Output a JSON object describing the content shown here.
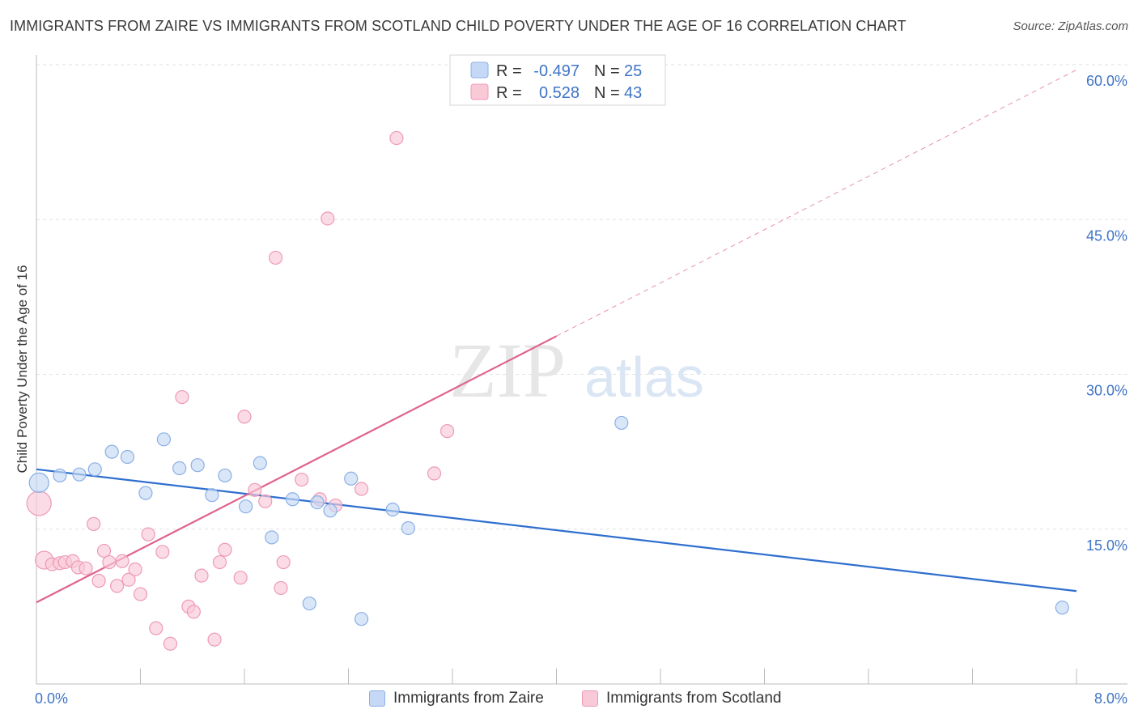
{
  "title": "IMMIGRANTS FROM ZAIRE VS IMMIGRANTS FROM SCOTLAND CHILD POVERTY UNDER THE AGE OF 16 CORRELATION CHART",
  "source": "Source: ZipAtlas.com",
  "watermark": {
    "zip": "ZIP",
    "atlas": "atlas"
  },
  "legend": {
    "rows": [
      {
        "r_label": "R =",
        "r_value": "-0.497",
        "n_label": "N =",
        "n_value": "25"
      },
      {
        "r_label": "R =",
        "r_value": "0.528",
        "n_label": "N =",
        "n_value": "43"
      }
    ]
  },
  "bottom_legend": {
    "zaire": "Immigrants from Zaire",
    "scotland": "Immigrants from Scotland"
  },
  "colors": {
    "zaire_fill": "#c5d8f5",
    "zaire_stroke": "#8ab0e6",
    "zaire_line": "#2f6fce",
    "scotland_fill": "#f9c9d8",
    "scotland_stroke": "#ee9ab5",
    "scotland_line": "#e0638f",
    "tick_text": "#3f74c7",
    "grid": "#e2e2e2"
  },
  "chart_data": {
    "type": "scatter",
    "title": "IMMIGRANTS FROM ZAIRE VS IMMIGRANTS FROM SCOTLAND CHILD POVERTY UNDER THE AGE OF 16 CORRELATION CHART",
    "xlabel": "",
    "ylabel": "Child Poverty Under the Age of 16",
    "xlim": [
      0,
      8
    ],
    "ylim": [
      0,
      60
    ],
    "x_tick_labels": [
      "0.0%",
      "8.0%"
    ],
    "y_ticks": [
      15,
      30,
      45,
      60
    ],
    "y_tick_labels": [
      "15.0%",
      "30.0%",
      "45.0%",
      "60.0%"
    ],
    "grid": true,
    "legend_position": "top-center",
    "series": [
      {
        "name": "Immigrants from Zaire",
        "R": -0.497,
        "N": 25,
        "points": [
          {
            "x": 0.02,
            "y": 19.5,
            "size": 12
          },
          {
            "x": 0.18,
            "y": 20.2
          },
          {
            "x": 0.33,
            "y": 20.3
          },
          {
            "x": 0.45,
            "y": 20.8
          },
          {
            "x": 0.58,
            "y": 22.5
          },
          {
            "x": 0.7,
            "y": 22.0
          },
          {
            "x": 0.84,
            "y": 18.5
          },
          {
            "x": 0.98,
            "y": 23.7
          },
          {
            "x": 1.1,
            "y": 20.9
          },
          {
            "x": 1.24,
            "y": 21.2
          },
          {
            "x": 1.35,
            "y": 18.3
          },
          {
            "x": 1.45,
            "y": 20.2
          },
          {
            "x": 1.61,
            "y": 17.2
          },
          {
            "x": 1.72,
            "y": 21.4
          },
          {
            "x": 1.81,
            "y": 14.2
          },
          {
            "x": 1.97,
            "y": 17.9
          },
          {
            "x": 2.16,
            "y": 17.6
          },
          {
            "x": 2.26,
            "y": 16.8
          },
          {
            "x": 2.42,
            "y": 19.9
          },
          {
            "x": 2.74,
            "y": 16.9
          },
          {
            "x": 2.86,
            "y": 15.1
          },
          {
            "x": 2.1,
            "y": 7.8
          },
          {
            "x": 2.5,
            "y": 6.3
          },
          {
            "x": 4.5,
            "y": 25.3
          },
          {
            "x": 7.89,
            "y": 7.4
          }
        ],
        "trend": {
          "x": [
            0,
            8
          ],
          "y": [
            20.8,
            9.0
          ]
        }
      },
      {
        "name": "Immigrants from Scotland",
        "R": 0.528,
        "N": 43,
        "points": [
          {
            "x": 0.02,
            "y": 17.5,
            "size": 15
          },
          {
            "x": 0.06,
            "y": 12.0,
            "size": 11
          },
          {
            "x": 0.12,
            "y": 11.6
          },
          {
            "x": 0.18,
            "y": 11.7
          },
          {
            "x": 0.22,
            "y": 11.8
          },
          {
            "x": 0.28,
            "y": 11.9
          },
          {
            "x": 0.32,
            "y": 11.3
          },
          {
            "x": 0.38,
            "y": 11.2
          },
          {
            "x": 0.44,
            "y": 15.5
          },
          {
            "x": 0.48,
            "y": 10.0
          },
          {
            "x": 0.52,
            "y": 12.9
          },
          {
            "x": 0.56,
            "y": 11.8
          },
          {
            "x": 0.62,
            "y": 9.5
          },
          {
            "x": 0.66,
            "y": 11.9
          },
          {
            "x": 0.71,
            "y": 10.1
          },
          {
            "x": 0.76,
            "y": 11.1
          },
          {
            "x": 0.8,
            "y": 8.7
          },
          {
            "x": 0.86,
            "y": 14.5
          },
          {
            "x": 0.92,
            "y": 5.4
          },
          {
            "x": 0.97,
            "y": 12.8
          },
          {
            "x": 1.03,
            "y": 3.9
          },
          {
            "x": 1.12,
            "y": 27.8
          },
          {
            "x": 1.17,
            "y": 7.5
          },
          {
            "x": 1.21,
            "y": 7.0
          },
          {
            "x": 1.27,
            "y": 10.5
          },
          {
            "x": 1.37,
            "y": 4.3
          },
          {
            "x": 1.41,
            "y": 11.8
          },
          {
            "x": 1.45,
            "y": 13.0
          },
          {
            "x": 1.57,
            "y": 10.3
          },
          {
            "x": 1.6,
            "y": 25.9
          },
          {
            "x": 1.68,
            "y": 18.8
          },
          {
            "x": 1.76,
            "y": 17.7
          },
          {
            "x": 1.84,
            "y": 41.3
          },
          {
            "x": 1.88,
            "y": 9.3
          },
          {
            "x": 1.9,
            "y": 11.8
          },
          {
            "x": 2.04,
            "y": 19.8
          },
          {
            "x": 2.18,
            "y": 17.9
          },
          {
            "x": 2.24,
            "y": 45.1
          },
          {
            "x": 2.3,
            "y": 17.3
          },
          {
            "x": 2.5,
            "y": 18.9
          },
          {
            "x": 2.77,
            "y": 52.9
          },
          {
            "x": 3.06,
            "y": 20.4
          },
          {
            "x": 3.16,
            "y": 24.5
          }
        ],
        "trend": {
          "x": [
            0,
            4
          ],
          "y": [
            7.9,
            33.7
          ],
          "dashed_to": {
            "x": 8,
            "y": 59.5
          }
        }
      }
    ]
  }
}
